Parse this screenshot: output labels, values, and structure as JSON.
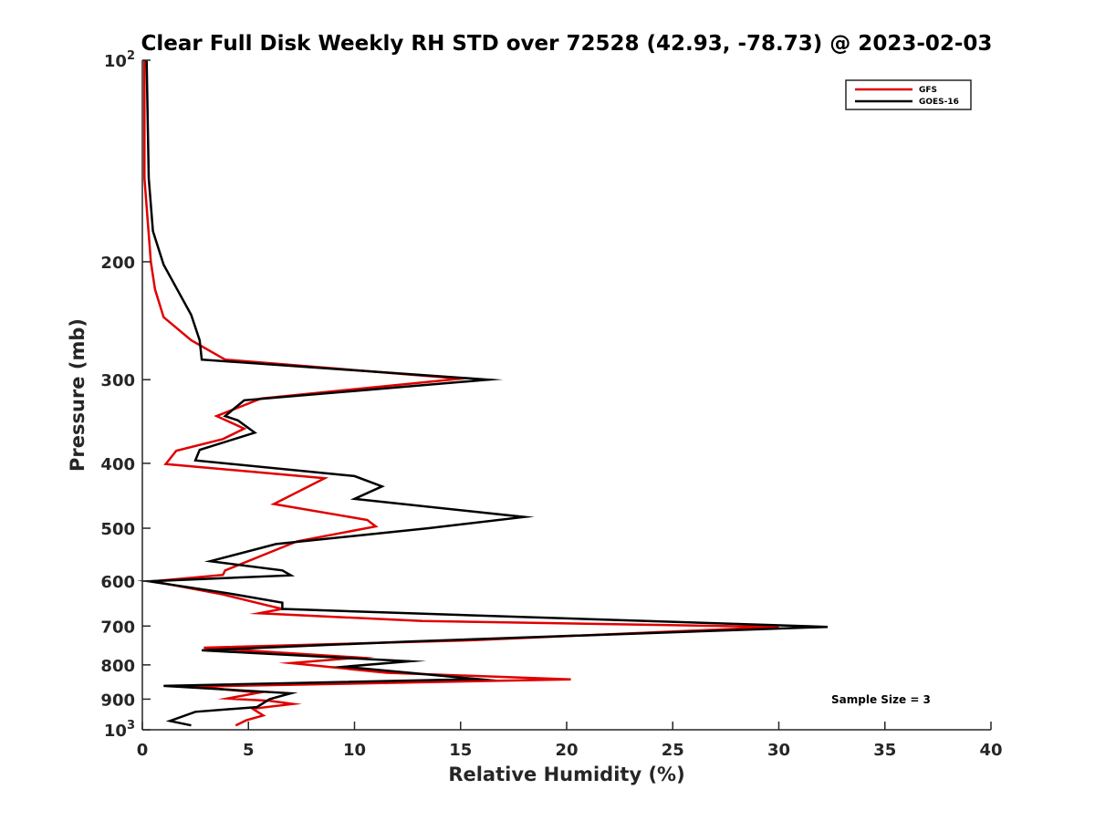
{
  "chart_data": {
    "type": "line",
    "title": "Clear Full Disk Weekly RH STD over 72528 (42.93, -78.73) @ 2023-02-03",
    "xlabel": "Relative Humidity (%)",
    "ylabel": "Pressure (mb)",
    "xlim": [
      0,
      40
    ],
    "ylim": [
      100,
      1000
    ],
    "y_scale": "log",
    "y_reversed": true,
    "grid": false,
    "legend_position": "top-right",
    "x_ticks": [
      "0",
      "5",
      "10",
      "15",
      "20",
      "25",
      "30",
      "35",
      "40"
    ],
    "y_ticks": [
      {
        "value": 100,
        "base": "10",
        "exp": "2"
      },
      {
        "value": 200,
        "label": "200"
      },
      {
        "value": 300,
        "label": "300"
      },
      {
        "value": 400,
        "label": "400"
      },
      {
        "value": 500,
        "label": "500"
      },
      {
        "value": 600,
        "label": "600"
      },
      {
        "value": 700,
        "label": "700"
      },
      {
        "value": 800,
        "label": "800"
      },
      {
        "value": 900,
        "label": "900"
      },
      {
        "value": 1000,
        "base": "10",
        "exp": "3"
      }
    ],
    "annotation": "Sample Size = 3",
    "series": [
      {
        "name": "GFS",
        "color": "#e00000",
        "points": [
          [
            0.1,
            100
          ],
          [
            0.1,
            150
          ],
          [
            0.4,
            200
          ],
          [
            0.6,
            220
          ],
          [
            1.0,
            242
          ],
          [
            2.3,
            262
          ],
          [
            3.9,
            280
          ],
          [
            15.0,
            299
          ],
          [
            5.6,
            320
          ],
          [
            3.5,
            340
          ],
          [
            4.8,
            355
          ],
          [
            3.8,
            368
          ],
          [
            1.6,
            383
          ],
          [
            1.1,
            401
          ],
          [
            8.6,
            421
          ],
          [
            6.2,
            460
          ],
          [
            10.6,
            486
          ],
          [
            11.0,
            497
          ],
          [
            7.3,
            523
          ],
          [
            3.9,
            578
          ],
          [
            3.8,
            587
          ],
          [
            0.5,
            600
          ],
          [
            3.8,
            628
          ],
          [
            5.9,
            652
          ],
          [
            6.6,
            660
          ],
          [
            5.5,
            670
          ],
          [
            13.2,
            688
          ],
          [
            30.0,
            702
          ],
          [
            15.5,
            735
          ],
          [
            2.9,
            754
          ],
          [
            10.2,
            780
          ],
          [
            7.0,
            795
          ],
          [
            11.5,
            822
          ],
          [
            20.2,
            841
          ],
          [
            2.5,
            862
          ],
          [
            5.5,
            880
          ],
          [
            4.0,
            898
          ],
          [
            6.0,
            905
          ],
          [
            7.1,
            915
          ],
          [
            5.2,
            930
          ],
          [
            5.7,
            952
          ],
          [
            4.9,
            968
          ],
          [
            4.4,
            985
          ]
        ]
      },
      {
        "name": "GOES-16",
        "color": "#000000",
        "points": [
          [
            0.2,
            100
          ],
          [
            0.3,
            150
          ],
          [
            0.5,
            180
          ],
          [
            1.0,
            202
          ],
          [
            2.3,
            240
          ],
          [
            2.7,
            262
          ],
          [
            2.8,
            280
          ],
          [
            16.3,
            300
          ],
          [
            4.8,
            322
          ],
          [
            3.9,
            340
          ],
          [
            4.5,
            345
          ],
          [
            5.3,
            360
          ],
          [
            2.7,
            382
          ],
          [
            2.5,
            396
          ],
          [
            10.0,
            418
          ],
          [
            11.3,
            433
          ],
          [
            10.0,
            452
          ],
          [
            18.0,
            481
          ],
          [
            13.5,
            500
          ],
          [
            6.3,
            528
          ],
          [
            3.2,
            560
          ],
          [
            6.6,
            578
          ],
          [
            7.0,
            588
          ],
          [
            0.3,
            600
          ],
          [
            4.0,
            625
          ],
          [
            6.6,
            646
          ],
          [
            6.6,
            660
          ],
          [
            12.6,
            670
          ],
          [
            32.3,
            702
          ],
          [
            12.6,
            738
          ],
          [
            2.8,
            761
          ],
          [
            12.6,
            790
          ],
          [
            9.5,
            805
          ],
          [
            15.8,
            840
          ],
          [
            1.0,
            860
          ],
          [
            7.0,
            882
          ],
          [
            6.0,
            900
          ],
          [
            5.4,
            925
          ],
          [
            2.5,
            940
          ],
          [
            1.3,
            970
          ],
          [
            2.3,
            985
          ]
        ]
      }
    ]
  }
}
